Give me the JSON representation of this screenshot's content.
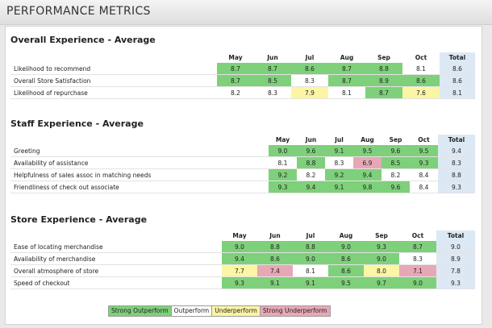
{
  "header": {
    "title": "PERFORMANCE METRICS"
  },
  "sections": [
    {
      "title": "Overall Experience - Average",
      "months": [
        "May",
        "Jun",
        "Jul",
        "Aug",
        "Sep",
        "Oct"
      ],
      "total_label": "Total",
      "rows": [
        {
          "label": "Likelihood to recommend",
          "values": [
            "8.7",
            "8.7",
            "8.6",
            "8.7",
            "8.8",
            "8.1"
          ],
          "ratings": [
            "so",
            "so",
            "so",
            "so",
            "so",
            "o"
          ],
          "total": "8.6"
        },
        {
          "label": "Overall Store Satisfaction",
          "values": [
            "8.7",
            "8.5",
            "8.3",
            "8.7",
            "8.9",
            "8.6"
          ],
          "ratings": [
            "so",
            "so",
            "o",
            "so",
            "so",
            "so"
          ],
          "total": "8.6"
        },
        {
          "label": "Likelihood of repurchase",
          "values": [
            "8.2",
            "8.3",
            "7.9",
            "8.1",
            "8.7",
            "7.6"
          ],
          "ratings": [
            "o",
            "o",
            "u",
            "o",
            "so",
            "u"
          ],
          "total": "8.1"
        }
      ]
    },
    {
      "title": "Staff Experience - Average",
      "months": [
        "May",
        "Jun",
        "Jul",
        "Aug",
        "Sep",
        "Oct"
      ],
      "total_label": "Total",
      "rows": [
        {
          "label": "Greeting",
          "values": [
            "9.0",
            "9.6",
            "9.1",
            "9.5",
            "9.6",
            "9.5"
          ],
          "ratings": [
            "so",
            "so",
            "so",
            "so",
            "so",
            "so"
          ],
          "total": "9.4"
        },
        {
          "label": "Availability of assistance",
          "values": [
            "8.1",
            "8.8",
            "8.3",
            "6.9",
            "8.5",
            "9.3"
          ],
          "ratings": [
            "o",
            "so",
            "o",
            "su",
            "so",
            "so"
          ],
          "total": "8.3"
        },
        {
          "label": "Helpfulness of sales assoc in matching needs",
          "values": [
            "9.2",
            "8.2",
            "9.2",
            "9.4",
            "8.2",
            "8.4"
          ],
          "ratings": [
            "so",
            "o",
            "so",
            "so",
            "o",
            "o"
          ],
          "total": "8.8"
        },
        {
          "label": "Friendliness of check out associate",
          "values": [
            "9.3",
            "9.4",
            "9.1",
            "9.8",
            "9.6",
            "8.4"
          ],
          "ratings": [
            "so",
            "so",
            "so",
            "so",
            "so",
            "o"
          ],
          "total": "9.3"
        }
      ]
    },
    {
      "title": "Store Experience - Average",
      "months": [
        "May",
        "Jun",
        "Jul",
        "Aug",
        "Sep",
        "Oct"
      ],
      "total_label": "Total",
      "rows": [
        {
          "label": "Ease of locating merchandise",
          "values": [
            "9.0",
            "8.8",
            "8.8",
            "9.0",
            "9.3",
            "8.7"
          ],
          "ratings": [
            "so",
            "so",
            "so",
            "so",
            "so",
            "so"
          ],
          "total": "9.0"
        },
        {
          "label": "Availability of merchandise",
          "values": [
            "9.4",
            "8.6",
            "9.0",
            "8.6",
            "9.0",
            "8.3"
          ],
          "ratings": [
            "so",
            "so",
            "so",
            "so",
            "so",
            "o"
          ],
          "total": "8.9"
        },
        {
          "label": "Overall atmosphere of store",
          "values": [
            "7.7",
            "7.4",
            "8.1",
            "8.6",
            "8.0",
            "7.1"
          ],
          "ratings": [
            "u",
            "su",
            "o",
            "so",
            "u",
            "su"
          ],
          "total": "7.8"
        },
        {
          "label": "Speed of checkout",
          "values": [
            "9.3",
            "9.1",
            "9.1",
            "9.5",
            "9.7",
            "9.0"
          ],
          "ratings": [
            "so",
            "so",
            "so",
            "so",
            "so",
            "so"
          ],
          "total": "9.3"
        }
      ]
    }
  ],
  "legend": {
    "strong_outperform": "Strong Outperform",
    "outperform": "Outperform",
    "underperform": "Underperform",
    "strong_underperform": "Strong Underperform"
  },
  "colors": {
    "strong_outperform": "#7ed07a",
    "outperform": "#ffffff",
    "underperform": "#fbf5a4",
    "strong_underperform": "#e7a8b6",
    "total_column": "#dde8f5"
  }
}
